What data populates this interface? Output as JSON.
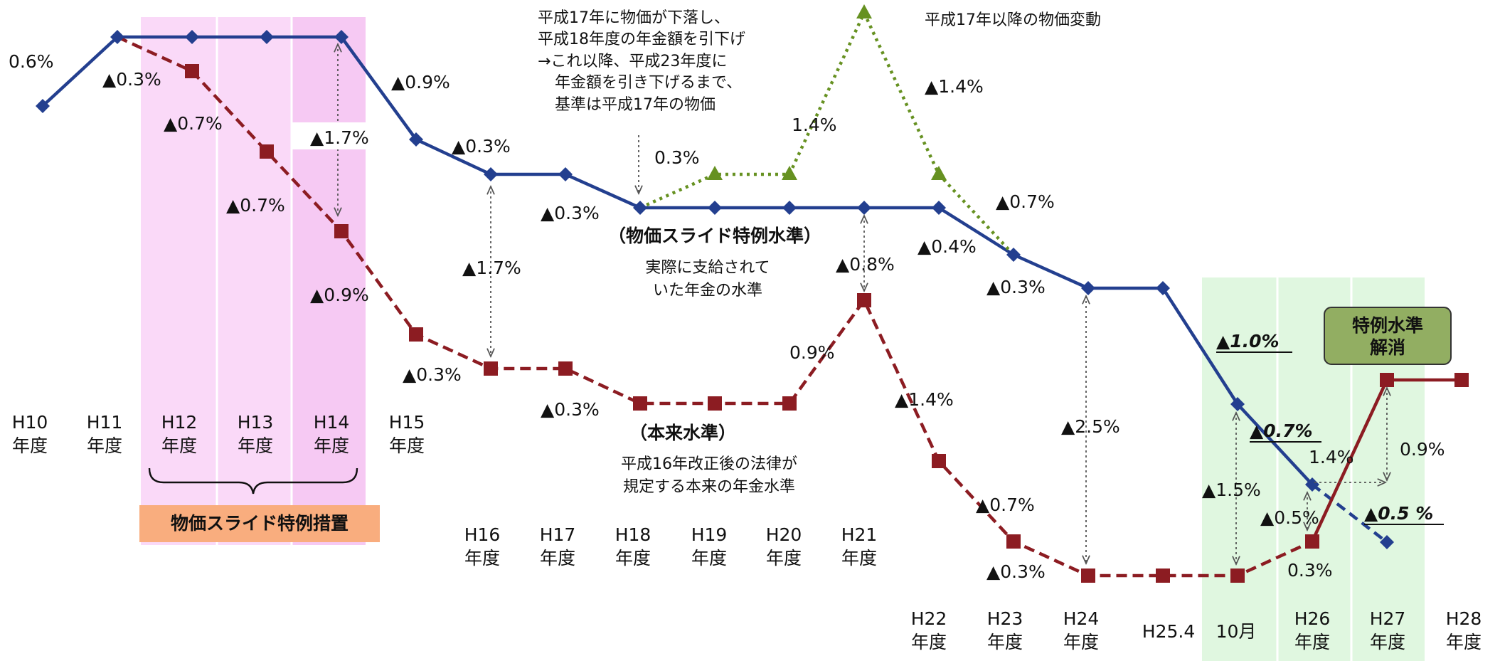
{
  "chart_data": {
    "type": "line",
    "series": [
      {
        "name": "（物価スライド特例水準）",
        "caption": "実際に支給されていた年金の水準",
        "color": "#233f8f",
        "style": "solid",
        "marker": "diamond"
      },
      {
        "name": "（本来水準）",
        "caption": "平成16年改正後の法律が規定する本来の年金水準",
        "color": "#8c1c22",
        "style": "dashed",
        "marker": "square"
      },
      {
        "name": "平成17年以降の物価変動",
        "color": "#669121",
        "style": "dotted",
        "marker": "triangle"
      }
    ],
    "x_labels": [
      [
        "H10",
        "年度"
      ],
      [
        "H11",
        "年度"
      ],
      [
        "H12",
        "年度"
      ],
      [
        "H13",
        "年度"
      ],
      [
        "H14",
        "年度"
      ],
      [
        "H15",
        "年度"
      ],
      [
        "H16",
        "年度"
      ],
      [
        "H17",
        "年度"
      ],
      [
        "H18",
        "年度"
      ],
      [
        "H19",
        "年度"
      ],
      [
        "H20",
        "年度"
      ],
      [
        "H21",
        "年度"
      ],
      [
        "H22",
        "年度"
      ],
      [
        "H23",
        "年度"
      ],
      [
        "H24",
        "年度"
      ],
      [
        "H25.4"
      ],
      [
        "10月"
      ],
      [
        "H26",
        "年度"
      ],
      [
        "H27",
        "年度"
      ],
      [
        "H28",
        "年度"
      ]
    ],
    "rate_labels": [
      "0.6%",
      "▲0.3%",
      "▲0.7%",
      "▲0.7%",
      "▲0.9%",
      "▲1.7%",
      "▲0.9%",
      "▲0.3%",
      "▲0.3%",
      "▲1.7%",
      "▲0.3%",
      "▲0.3%",
      "0.3%",
      "1.4%",
      "▲1.4%",
      "0.9%",
      "▲0.8%",
      "▲1.4%",
      "▲0.7%",
      "▲0.4%",
      "▲0.3%",
      "▲0.7%",
      "▲0.3%",
      "▲2.5%",
      "▲1.0%",
      "▲0.7%",
      "1.4%",
      "0.9%",
      "▲1.5%",
      "▲0.5%",
      "0.3%",
      "▲0.5 %"
    ],
    "annotations": {
      "special_measure": "物価スライド特例措置",
      "price_drop_note": [
        "平成17年に物価が下落し、",
        "平成18年度の年金額を引下げ",
        "→これ以降、平成23年度に",
        "年金額を引き下げるまで、",
        "基準は平成17年の物価"
      ],
      "resolved_badge": [
        "特例水準",
        "解消"
      ]
    },
    "colors": {
      "special_measure_band": "#fad9f8",
      "label_box": "#f9ad7e",
      "recent_band": "#e0f7e0",
      "badge": "#92ae62"
    }
  }
}
